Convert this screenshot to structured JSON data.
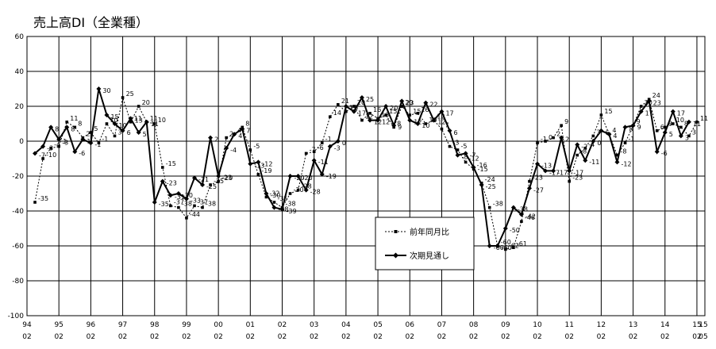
{
  "chart_data": {
    "type": "line",
    "title": "売上高DI（全業種）",
    "ylim": [
      -100,
      60
    ],
    "yticks": [
      -100,
      -80,
      -60,
      -40,
      -20,
      0,
      20,
      40,
      60
    ],
    "grid": true,
    "legend_position": "center-right",
    "x_start": 1994.25,
    "xticks": [
      {
        "year": 1994,
        "top": "94",
        "bottom": "02"
      },
      {
        "year": 1995,
        "top": "95",
        "bottom": "02"
      },
      {
        "year": 1996,
        "top": "96",
        "bottom": "02"
      },
      {
        "year": 1997,
        "top": "97",
        "bottom": "02"
      },
      {
        "year": 1998,
        "top": "98",
        "bottom": "02"
      },
      {
        "year": 1999,
        "top": "99",
        "bottom": "02"
      },
      {
        "year": 2000,
        "top": "00",
        "bottom": "02"
      },
      {
        "year": 2001,
        "top": "01",
        "bottom": "02"
      },
      {
        "year": 2002,
        "top": "02",
        "bottom": "02"
      },
      {
        "year": 2003,
        "top": "03",
        "bottom": "02"
      },
      {
        "year": 2004,
        "top": "04",
        "bottom": "02"
      },
      {
        "year": 2005,
        "top": "05",
        "bottom": "02"
      },
      {
        "year": 2006,
        "top": "06",
        "bottom": "02"
      },
      {
        "year": 2007,
        "top": "07",
        "bottom": "02"
      },
      {
        "year": 2008,
        "top": "08",
        "bottom": "02"
      },
      {
        "year": 2009,
        "top": "09",
        "bottom": "02"
      },
      {
        "year": 2010,
        "top": "10",
        "bottom": "02"
      },
      {
        "year": 2011,
        "top": "11",
        "bottom": "02"
      },
      {
        "year": 2012,
        "top": "12",
        "bottom": "02"
      },
      {
        "year": 2013,
        "top": "13",
        "bottom": "02"
      },
      {
        "year": 2014,
        "top": "14",
        "bottom": "02"
      },
      {
        "year": 2015,
        "top": "15",
        "bottom": "02"
      },
      {
        "year": 2015.2,
        "top": "15",
        "bottom": "05"
      }
    ],
    "series": [
      {
        "name": "前年同月比",
        "style": "dashed-square",
        "color": "#000000",
        "values": [
          -35,
          -10,
          -4,
          -3,
          11,
          8,
          2,
          5,
          -1,
          10,
          3,
          25,
          11,
          20,
          11,
          10,
          -15,
          -37,
          -38,
          -44,
          -37,
          -38,
          -25,
          -23,
          2,
          4,
          8,
          -5,
          -19,
          -32,
          -35,
          -38,
          -30,
          -28,
          -7,
          -6,
          -1,
          14,
          21,
          17,
          20,
          12,
          16,
          13,
          15,
          8,
          20,
          15,
          16,
          10,
          12,
          7,
          -3,
          -5,
          -12,
          -16,
          -24,
          -38,
          -60,
          -62,
          -61,
          -46,
          -23,
          -1,
          0,
          2,
          9,
          -23,
          -8,
          -4,
          3,
          15,
          4,
          -8,
          -1,
          9,
          20,
          24,
          6,
          8,
          10,
          8,
          3,
          11
        ]
      },
      {
        "name": "次期見通し",
        "style": "solid-diamond",
        "color": "#000000",
        "values": [
          -7,
          -3,
          8,
          1,
          8,
          -6,
          1,
          -1,
          30,
          15,
          10,
          6,
          13,
          5,
          11,
          -35,
          -23,
          -31,
          -30,
          -33,
          -21,
          -25,
          2,
          -20,
          -4,
          4,
          7,
          -13,
          -12,
          -30,
          -38,
          -39,
          -20,
          -20,
          -28,
          -11,
          -19,
          -3,
          0,
          20,
          17,
          25,
          12,
          12,
          20,
          9,
          23,
          12,
          10,
          22,
          12,
          17,
          6,
          -8,
          -7,
          -15,
          -25,
          -60,
          -60,
          -50,
          -38,
          -42,
          -27,
          -13,
          -17,
          -17,
          2,
          -17,
          -2,
          -11,
          0,
          6,
          4,
          -12,
          8,
          9,
          17,
          23,
          -6,
          5,
          17,
          3,
          11
        ]
      }
    ]
  }
}
